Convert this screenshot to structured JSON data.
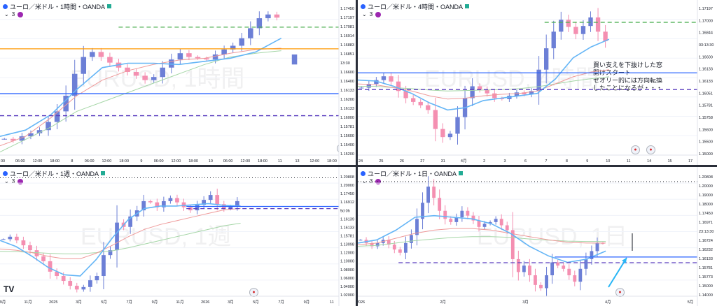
{
  "colors": {
    "bull": "#6c7fd6",
    "bear": "#f48fb1",
    "ema_fast": "#64b5f6",
    "ema_mid": "#ef9a9a",
    "ema_slow": "#a5d6a7",
    "level_blue": "#2962ff",
    "level_purple": "#5c3fbf",
    "level_green": "#4caf50",
    "level_orange": "#ff9800",
    "arrow": "#29b6f6"
  },
  "icons": [
    "currency-pair-icon",
    "replay-flag-icon",
    "indicator-badge-icon",
    "economic-event-icon",
    "tradingview-logo-icon"
  ],
  "chart_data": [
    {
      "type": "candlestick",
      "title": "ユーロ／米ドル・1時間・OANDA",
      "indicator_count": "3",
      "watermark": "EURUSD, 1時間",
      "x_tick_labels": [
        "00",
        "06:00",
        "12:00",
        "18:00",
        "8",
        "06:00",
        "12:00",
        "18:00",
        "9",
        "06:00",
        "12:00",
        "18:00",
        "10",
        "06:00",
        "12:00",
        "18:00",
        "11",
        "13",
        "12:00",
        "18:00"
      ],
      "y_tick_labels": [
        "1.17450",
        "1.17197",
        "1.17081",
        "1.16914",
        "1.16883",
        "1.16851",
        "13:30",
        "1.16600",
        "1.16400",
        "1.16133",
        "1.16200",
        "1.16133",
        "1.16000",
        "1.15781",
        "1.15600",
        "1.15400",
        "1.15200"
      ],
      "ylim": [
        1.1515,
        1.1752
      ],
      "price_path": [
        1.1541,
        1.1538,
        1.1545,
        1.155,
        1.1555,
        1.1568,
        1.1585,
        1.161,
        1.1645,
        1.1672,
        1.168,
        1.1672,
        1.1663,
        1.1655,
        1.1648,
        1.1642,
        1.1635,
        1.164,
        1.1655,
        1.1668,
        1.1678,
        1.1672,
        1.167,
        1.1668,
        1.1676,
        1.1684,
        1.169,
        1.1702,
        1.1718,
        1.1734,
        1.174,
        1.1735
      ],
      "last_candle": [
        1.166,
        1.1676
      ],
      "ema_fast": [
        1.1545,
        1.1555,
        1.158,
        1.162,
        1.1655,
        1.1662,
        1.1662,
        1.166,
        1.1665,
        1.167,
        1.168,
        1.1702
      ],
      "ema_mid": [
        1.153,
        1.1545,
        1.1575,
        1.161,
        1.1635,
        1.165,
        1.166,
        1.1667,
        1.167,
        1.1678,
        1.1684,
        1.1686
      ],
      "ema_slow": [
        1.152,
        1.154,
        1.156,
        1.1585,
        1.16,
        1.1615,
        1.163,
        1.1645,
        1.166,
        1.1672,
        1.1678,
        1.1682
      ],
      "levels": [
        {
          "value": 1.17197,
          "color": "level_green",
          "style": "dashed",
          "from": 0.35
        },
        {
          "value": 1.16851,
          "color": "level_orange",
          "style": "solid",
          "from": 0.0
        },
        {
          "value": 1.16133,
          "color": "level_blue",
          "style": "solid",
          "from": 0.0
        },
        {
          "value": 1.15781,
          "color": "level_purple",
          "style": "dashed",
          "from": 0.0
        }
      ]
    },
    {
      "type": "candlestick",
      "title": "ユーロ／米ドル・4時間・OANDA",
      "indicator_count": "3",
      "watermark": "EURUSD, 4時間",
      "x_tick_labels": [
        "24",
        "25",
        "26",
        "27",
        "31",
        "4月",
        "2",
        "3",
        "6",
        "7",
        "8",
        "9",
        "10",
        "11",
        "14",
        "15",
        "17"
      ],
      "y_tick_labels": [
        "1.17197",
        "1.17000",
        "1.16844",
        "03:13:30",
        "1.16600",
        "1.16133",
        "1.16133",
        "1.16051",
        "1.15781",
        "1.15758",
        "1.15600",
        "1.15500",
        "1.15000"
      ],
      "ylim": [
        1.144,
        1.1752
      ],
      "price_path": [
        1.1582,
        1.159,
        1.1598,
        1.1606,
        1.1595,
        1.1575,
        1.156,
        1.1552,
        1.1545,
        1.1535,
        1.1495,
        1.1478,
        1.1485,
        1.152,
        1.156,
        1.1585,
        1.1578,
        1.157,
        1.156,
        1.1558,
        1.1565,
        1.1572,
        1.1568,
        1.1575,
        1.162,
        1.1665,
        1.17,
        1.1725,
        1.171,
        1.1695,
        1.1712,
        1.173,
        1.17,
        1.168
      ],
      "ema_fast": [
        1.1598,
        1.1596,
        1.1585,
        1.157,
        1.155,
        1.1535,
        1.154,
        1.1555,
        1.156,
        1.1565,
        1.157,
        1.16,
        1.1645,
        1.1668,
        1.1684
      ],
      "ema_mid": [
        1.159,
        1.1588,
        1.1582,
        1.1575,
        1.1565,
        1.1558,
        1.156,
        1.1565,
        1.1568,
        1.157,
        1.1575,
        1.159,
        1.1605,
        1.1615,
        1.162
      ],
      "ema_slow": [
        1.1585,
        1.1585,
        1.1582,
        1.158,
        1.1577,
        1.1575,
        1.1576,
        1.1577,
        1.1578,
        1.158,
        1.1584,
        1.159,
        1.1596,
        1.1601,
        1.1605
      ],
      "levels": [
        {
          "value": 1.17197,
          "color": "level_green",
          "style": "dashed",
          "from": 0.55
        },
        {
          "value": 1.16133,
          "color": "level_blue",
          "style": "solid",
          "from": 0.0
        },
        {
          "value": 1.15781,
          "color": "level_purple",
          "style": "dashed",
          "from": 0.0
        }
      ],
      "annotation": [
        "買い支えを下抜けした窓",
        "開けスタート",
        "セオリー的には方向転換",
        "したことになるが・・・"
      ]
    },
    {
      "type": "candlestick",
      "title": "ユーロ／米ドル・1週・OANDA",
      "indicator_count": "3",
      "watermark": "EURUSD, 1週",
      "x_tick_labels": [
        "9月",
        "11月",
        "2025",
        "3月",
        "5月",
        "7月",
        "9月",
        "11月",
        "2026",
        "3月",
        "5月",
        "7月",
        "9月",
        "11"
      ],
      "y_tick_labels": [
        "1.20808",
        "1.20000",
        "1.17450",
        "1.16912",
        "5d 0h",
        "1.16139",
        "1.16133",
        "1.15781",
        "1.13098",
        "1.12000",
        "1.10000",
        "1.08000",
        "1.06000",
        "1.04000",
        "1.02000"
      ],
      "ylim": [
        1.015,
        1.212
      ],
      "price_path": [
        1.108,
        1.112,
        1.106,
        1.098,
        1.09,
        1.08,
        1.072,
        1.055,
        1.048,
        1.04,
        1.032,
        1.026,
        1.03,
        1.041,
        1.048,
        1.082,
        1.09,
        1.135,
        1.128,
        1.145,
        1.155,
        1.17,
        1.168,
        1.16,
        1.17,
        1.175,
        1.168,
        1.16,
        1.155,
        1.164,
        1.172,
        1.18,
        1.165,
        1.158,
        1.161,
        1.17
      ],
      "ema_fast": [
        1.106,
        1.096,
        1.08,
        1.062,
        1.05,
        1.048,
        1.075,
        1.11,
        1.14,
        1.158,
        1.162,
        1.162,
        1.164,
        1.166,
        1.163,
        1.162
      ],
      "ema_mid": [
        1.092,
        1.09,
        1.086,
        1.08,
        1.076,
        1.076,
        1.085,
        1.098,
        1.112,
        1.124,
        1.132,
        1.138,
        1.144,
        1.15,
        1.156,
        1.158
      ],
      "ema_slow": [
        1.088,
        1.0875,
        1.0865,
        1.085,
        1.084,
        1.084,
        1.086,
        1.089,
        1.094,
        1.1,
        1.106,
        1.112,
        1.118,
        1.124,
        1.13,
        1.134
      ],
      "levels": [
        {
          "value": 1.20808,
          "color": "black",
          "style": "dotted",
          "from": 0.0
        },
        {
          "value": 1.16133,
          "color": "level_blue",
          "style": "solid",
          "from": 0.55
        },
        {
          "value": 1.15781,
          "color": "level_purple",
          "style": "dashed",
          "from": 0.55
        }
      ]
    },
    {
      "type": "candlestick",
      "title": "ユーロ／米ドル・1日・OANDA",
      "indicator_count": "3",
      "watermark": "EURUSD, 1日",
      "x_tick_labels": [
        "2026",
        "2月",
        "3月",
        "4月",
        "5月"
      ],
      "y_tick_labels": [
        "1.20808",
        "1.20000",
        "1.19000",
        "1.18000",
        "1.17450",
        "1.16971",
        "23:13:30",
        "1.16724",
        "1.16232",
        "1.16133",
        "1.15781",
        "1.15773",
        "1.15000",
        "1.14000"
      ],
      "ylim": [
        1.137,
        1.212
      ],
      "price_path": [
        1.172,
        1.17,
        1.168,
        1.17,
        1.172,
        1.169,
        1.166,
        1.164,
        1.17,
        1.175,
        1.185,
        1.195,
        1.205,
        1.198,
        1.19,
        1.185,
        1.183,
        1.186,
        1.19,
        1.187,
        1.184,
        1.18,
        1.182,
        1.183,
        1.185,
        1.181,
        1.178,
        1.16,
        1.152,
        1.156,
        1.15,
        1.144,
        1.142,
        1.15,
        1.158,
        1.156,
        1.154,
        1.15,
        1.146,
        1.154,
        1.16,
        1.165,
        1.17,
        1.1697
      ],
      "ema_fast": [
        1.17,
        1.172,
        1.178,
        1.186,
        1.187,
        1.186,
        1.185,
        1.182,
        1.176,
        1.168,
        1.162,
        1.158,
        1.16,
        1.165
      ],
      "ema_mid": [
        1.169,
        1.17,
        1.173,
        1.176,
        1.178,
        1.179,
        1.179,
        1.178,
        1.176,
        1.174,
        1.172,
        1.1705,
        1.17,
        1.17
      ],
      "ema_slow": [
        1.168,
        1.1685,
        1.17,
        1.1715,
        1.1725,
        1.1735,
        1.174,
        1.174,
        1.1735,
        1.1725,
        1.1718,
        1.1712,
        1.171,
        1.171
      ],
      "levels": [
        {
          "value": 1.20808,
          "color": "black",
          "style": "dotted",
          "from": 0.0
        },
        {
          "value": 1.16133,
          "color": "level_blue",
          "style": "solid",
          "from": 0.58
        },
        {
          "value": 1.15781,
          "color": "level_purple",
          "style": "dashed",
          "from": 0.12
        }
      ]
    }
  ]
}
